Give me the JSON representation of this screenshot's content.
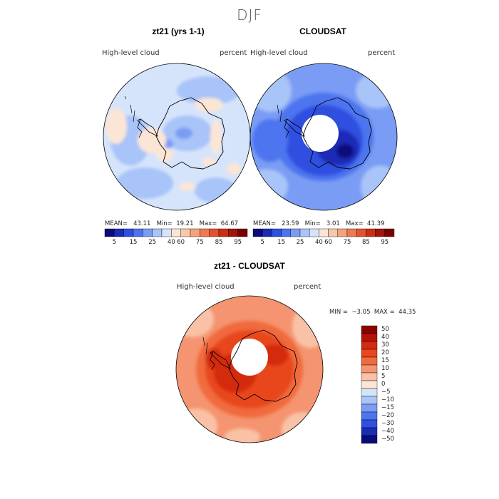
{
  "season_title": "DJF",
  "panels": [
    {
      "title": "zt21 (yrs 1-1)",
      "variable_label": "High-level cloud",
      "units_label": "percent",
      "stats": {
        "mean_label": "MEAN=",
        "mean": "43.11",
        "min_label": "Min=",
        "min": "19.21",
        "max_label": "Max=",
        "max": "64.67"
      },
      "colorbar_ticks": [
        "5",
        "15",
        "25",
        "40",
        "60",
        "75",
        "85",
        "95"
      ]
    },
    {
      "title": "CLOUDSAT",
      "variable_label": "High-level cloud",
      "units_label": "percent",
      "stats": {
        "mean_label": "MEAN=",
        "mean": "23.59",
        "min_label": "Min=",
        "min": "3.01",
        "max_label": "Max=",
        "max": "41.39"
      },
      "colorbar_ticks": [
        "5",
        "15",
        "25",
        "40",
        "60",
        "75",
        "85",
        "95"
      ]
    }
  ],
  "diff_panel": {
    "title": "zt21 - CLOUDSAT",
    "variable_label": "High-level cloud",
    "units_label": "percent",
    "min_label": "MIN =",
    "min": "−3.05",
    "max_label": "MAX =",
    "max": "44.35",
    "colorbar_levels": [
      "50",
      "40",
      "30",
      "20",
      "15",
      "10",
      "5",
      "0",
      "−5",
      "−10",
      "−15",
      "−20",
      "−30",
      "−40",
      "−50"
    ]
  },
  "colors": {
    "abs_scale": [
      "#0a0a7a",
      "#1a2bb5",
      "#2f50e0",
      "#4d74ef",
      "#7a9cf4",
      "#a8c4f8",
      "#d6e4fb",
      "#fbe6d6",
      "#f9c8aa",
      "#f5a27c",
      "#ef7a52",
      "#e4512d",
      "#cc2e14",
      "#a1140a",
      "#7a0000"
    ],
    "diff_scale": [
      "#8b0000",
      "#b1150a",
      "#d42a10",
      "#e8461e",
      "#f06a3c",
      "#f59470",
      "#f9c2a6",
      "#fbe6d6",
      "#d6e4fb",
      "#a8c4f8",
      "#7a9cf4",
      "#4d74ef",
      "#2f50e0",
      "#1a2bb5",
      "#0a0a7a"
    ]
  }
}
